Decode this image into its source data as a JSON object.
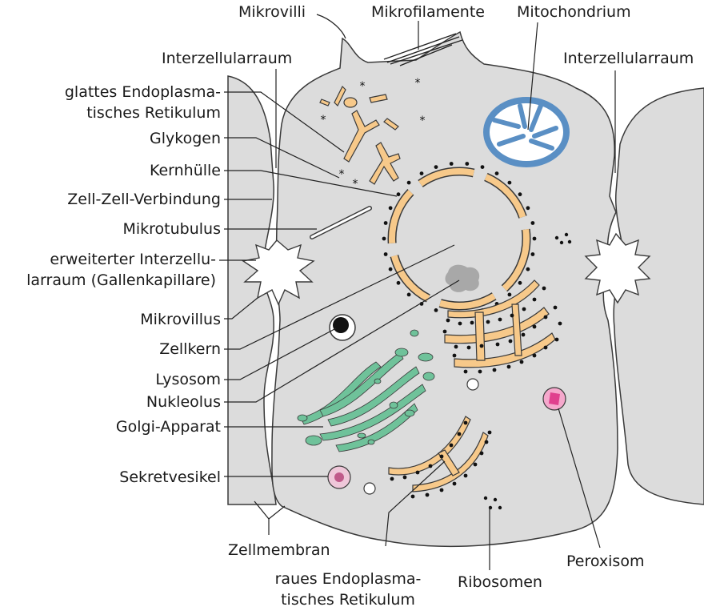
{
  "labels": {
    "mikrovilli": "Mikrovilli",
    "mikrofilamente": "Mikrofilamente",
    "mitochondrium": "Mitochondrium",
    "interzellularraum_left": "Interzellularraum",
    "interzellularraum_right": "Interzellularraum",
    "glattes_er_line1": "glattes Endoplasma-",
    "glattes_er_line2": "tisches Retikulum",
    "glykogen": "Glykogen",
    "kernhuelle": "Kernhülle",
    "zell_zell_verbindung": "Zell-Zell-Verbindung",
    "mikrotubulus": "Mikrotubulus",
    "erweiterter_line1": "erweiterter Interzellu-",
    "erweiterter_line2": "larraum (Gallenkapillare)",
    "mikrovillus": "Mikrovillus",
    "zellkern": "Zellkern",
    "lysosom": "Lysosom",
    "nukleolus": "Nukleolus",
    "golgi": "Golgi-Apparat",
    "sekretvesikel": "Sekretvesikel",
    "zellmembran": "Zellmembran",
    "raues_er_line1": "raues Endoplasma-",
    "raues_er_line2": "tisches Retikulum",
    "ribosomen": "Ribosomen",
    "peroxisom": "Peroxisom"
  },
  "colors": {
    "cytoplasm": "#dcdcdc",
    "outline": "#3a3a3a",
    "er": "#f7c98a",
    "mitochondrion": "#5a8fc4",
    "golgi": "#6fc29a",
    "nucleolus": "#a8a8a8",
    "peroxisome": "#e0408e",
    "secretory_vesicle": "#c05a8a",
    "ribosome": "#111111",
    "leader_line": "#222222"
  }
}
